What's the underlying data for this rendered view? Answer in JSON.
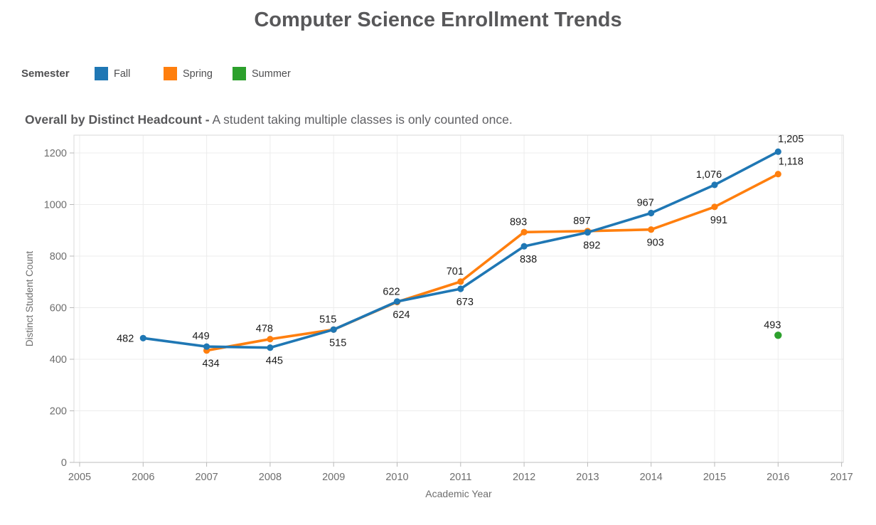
{
  "chart_data": {
    "type": "line",
    "title": "Computer Science Enrollment Trends",
    "subtitle": {
      "bold": "Overall by Distinct Headcount -",
      "rest": "A student taking multiple classes is only counted once."
    },
    "legend": {
      "title": "Semester",
      "position": "top-left",
      "entries": [
        {
          "label": "Fall",
          "color": "#1f77b4"
        },
        {
          "label": "Spring",
          "color": "#ff7f0e"
        },
        {
          "label": "Summer",
          "color": "#2ca02c"
        }
      ]
    },
    "xlabel": "Academic Year",
    "ylabel": "Distinct Student Count",
    "x_ticks": [
      2005,
      2006,
      2007,
      2008,
      2009,
      2010,
      2011,
      2012,
      2013,
      2014,
      2015,
      2016,
      2017
    ],
    "y_ticks": [
      0,
      200,
      400,
      600,
      800,
      1000,
      1200
    ],
    "xlim": [
      2005,
      2017
    ],
    "ylim": [
      0,
      1200
    ],
    "grid": true,
    "series": [
      {
        "name": "Fall",
        "color": "#1f77b4",
        "points": [
          {
            "year": 2006,
            "value": 482,
            "label": "482",
            "label_pos": "left"
          },
          {
            "year": 2007,
            "value": 449,
            "label": "449",
            "label_pos": "above"
          },
          {
            "year": 2008,
            "value": 445,
            "label": "445",
            "label_pos": "below"
          },
          {
            "year": 2009,
            "value": 515,
            "label": "515",
            "label_pos": "below"
          },
          {
            "year": 2010,
            "value": 624,
            "label": "624",
            "label_pos": "below"
          },
          {
            "year": 2011,
            "value": 673,
            "label": "673",
            "label_pos": "below"
          },
          {
            "year": 2012,
            "value": 838,
            "label": "838",
            "label_pos": "below"
          },
          {
            "year": 2013,
            "value": 892,
            "label": "892",
            "label_pos": "below"
          },
          {
            "year": 2014,
            "value": 967,
            "label": "967",
            "label_pos": "above"
          },
          {
            "year": 2015,
            "value": 1076,
            "label": "1,076",
            "label_pos": "above"
          },
          {
            "year": 2016,
            "value": 1205,
            "label": "1,205",
            "label_pos": "above-right"
          }
        ]
      },
      {
        "name": "Spring",
        "color": "#ff7f0e",
        "points": [
          {
            "year": 2007,
            "value": 434,
            "label": "434",
            "label_pos": "below"
          },
          {
            "year": 2008,
            "value": 478,
            "label": "478",
            "label_pos": "above"
          },
          {
            "year": 2009,
            "value": 515,
            "label": "515",
            "label_pos": "above"
          },
          {
            "year": 2010,
            "value": 622,
            "label": "622",
            "label_pos": "above"
          },
          {
            "year": 2011,
            "value": 701,
            "label": "701",
            "label_pos": "above"
          },
          {
            "year": 2012,
            "value": 893,
            "label": "893",
            "label_pos": "above"
          },
          {
            "year": 2013,
            "value": 897,
            "label": "897",
            "label_pos": "above"
          },
          {
            "year": 2014,
            "value": 903,
            "label": "903",
            "label_pos": "below"
          },
          {
            "year": 2015,
            "value": 991,
            "label": "991",
            "label_pos": "below"
          },
          {
            "year": 2016,
            "value": 1118,
            "label": "1,118",
            "label_pos": "above-right"
          }
        ]
      },
      {
        "name": "Summer",
        "color": "#2ca02c",
        "points": [
          {
            "year": 2016,
            "value": 493,
            "label": "493",
            "label_pos": "above"
          }
        ]
      }
    ],
    "style_colors": {
      "grid": "#ececec",
      "plot_border": "#d9d9d9",
      "axis_line": "#c9c9c9",
      "tick_mark": "#b9b9b9",
      "tick_label": "#6e6e6e",
      "axis_title": "#6e6e6e",
      "data_label": "#1a1a1a"
    }
  }
}
